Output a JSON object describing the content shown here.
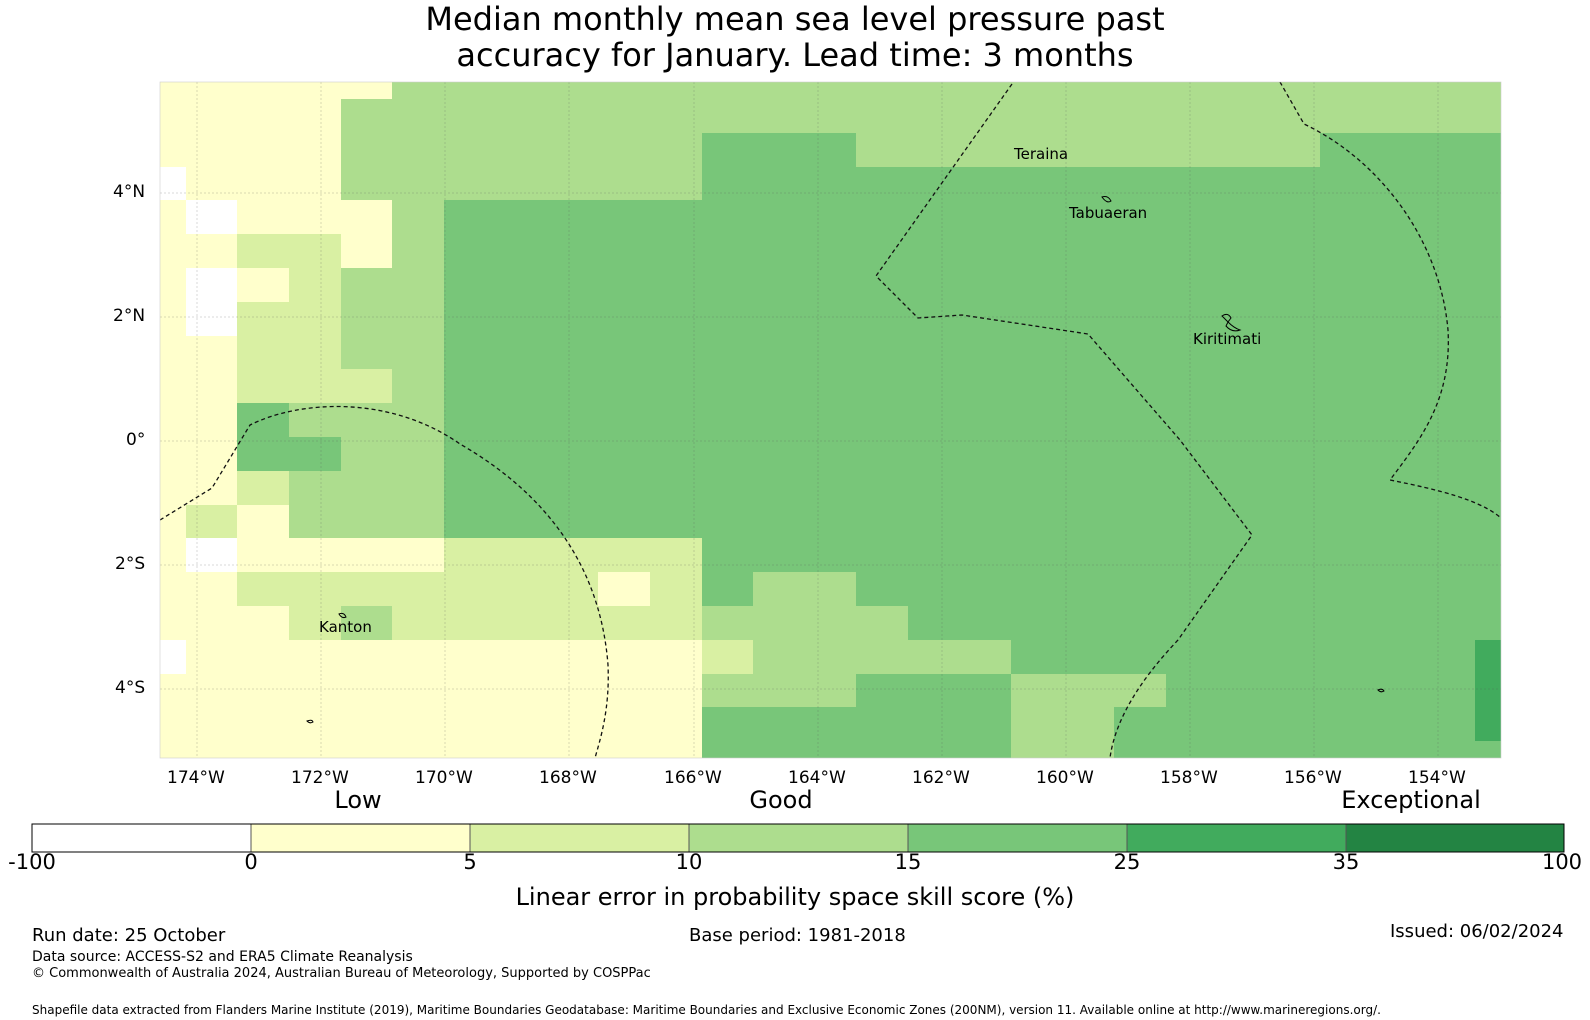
{
  "title": {
    "line1": "Median monthly mean sea level pressure past",
    "line2": "accuracy for January. Lead time: 3 months"
  },
  "map": {
    "lon_labels": [
      "174°W",
      "172°W",
      "170°W",
      "168°W",
      "166°W",
      "164°W",
      "162°W",
      "160°W",
      "158°W",
      "156°W",
      "154°W"
    ],
    "lat_labels": [
      "4°N",
      "2°N",
      "0°",
      "2°S",
      "4°S"
    ],
    "place_names": [
      "Teraina",
      "Tabuaeran",
      "Kiritimati",
      "Kanton"
    ]
  },
  "colorbar": {
    "categories": [
      "Low",
      "Good",
      "Exceptional"
    ],
    "ticks": [
      "-100",
      "0",
      "5",
      "10",
      "15",
      "25",
      "35",
      "100"
    ],
    "colors": [
      "#ffffff",
      "#ffffcc",
      "#d9f0a3",
      "#addd8e",
      "#78c679",
      "#41ab5d",
      "#238443"
    ],
    "label": "Linear error in probability space skill score (%)"
  },
  "footer": {
    "run_date": "Run date: 25 October",
    "base_period": "Base period: 1981-2018",
    "issued": "Issued: 06/02/2024",
    "data_source": "Data source: ACCESS-S2 and ERA5 Climate Reanalysis",
    "copyright": "© Commonwealth of Australia 2024, Australian Bureau of Meteorology, Supported by COSPPac",
    "shapefile": "Shapefile data extracted from Flanders Marine Institute (2019), Maritime Boundaries Geodatabase: Maritime Boundaries and Exclusive Economic Zones (200NM), version 11. Available online at http://www.marineregions.org/."
  }
}
